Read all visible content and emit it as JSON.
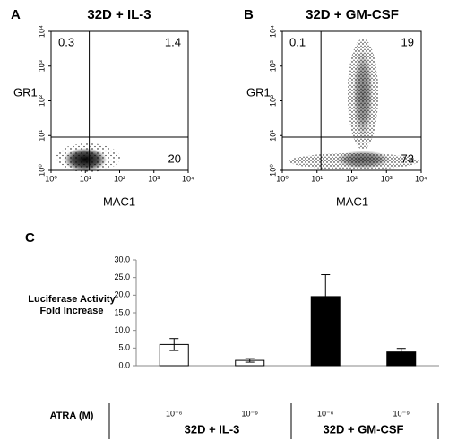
{
  "chart_data": [
    {
      "type": "scatter",
      "panel": "A",
      "title": "32D + IL-3",
      "xlabel": "MAC1",
      "ylabel": "GR1",
      "xscale": "log",
      "yscale": "log",
      "xlim": [
        1,
        10000
      ],
      "ylim": [
        1,
        10000
      ],
      "xticks": [
        {
          "value": 1,
          "label": "10⁰"
        },
        {
          "value": 10,
          "label": "10¹"
        },
        {
          "value": 100,
          "label": "10²"
        },
        {
          "value": 1000,
          "label": "10³"
        },
        {
          "value": 10000,
          "label": "10⁴"
        }
      ],
      "yticks": [
        {
          "value": 1,
          "label": "10⁰"
        },
        {
          "value": 10,
          "label": "10¹"
        },
        {
          "value": 100,
          "label": "10²"
        },
        {
          "value": 1000,
          "label": "10³"
        },
        {
          "value": 10000,
          "label": "10⁴"
        }
      ],
      "gate_x": 13,
      "gate_y": 9,
      "quadrants": {
        "upper_left": 0.3,
        "upper_right": 1.4,
        "lower_right": 20
      }
    },
    {
      "type": "scatter",
      "panel": "B",
      "title": "32D + GM-CSF",
      "xlabel": "MAC1",
      "ylabel": "GR1",
      "xscale": "log",
      "yscale": "log",
      "xlim": [
        1,
        10000
      ],
      "ylim": [
        1,
        10000
      ],
      "xticks": [
        {
          "value": 1,
          "label": "10⁰"
        },
        {
          "value": 10,
          "label": "10¹"
        },
        {
          "value": 100,
          "label": "10²"
        },
        {
          "value": 1000,
          "label": "10³"
        },
        {
          "value": 10000,
          "label": "10⁴"
        }
      ],
      "yticks": [
        {
          "value": 1,
          "label": "10⁰"
        },
        {
          "value": 10,
          "label": "10¹"
        },
        {
          "value": 100,
          "label": "10²"
        },
        {
          "value": 1000,
          "label": "10³"
        },
        {
          "value": 10000,
          "label": "10⁴"
        }
      ],
      "gate_x": 13,
      "gate_y": 9,
      "quadrants": {
        "upper_left": 0.1,
        "upper_right": 19,
        "lower_right": 73
      }
    },
    {
      "type": "bar",
      "panel": "C",
      "ylabel": [
        "Luciferase Activity",
        "Fold Increase"
      ],
      "xlabel": "ATRA (M)",
      "categories": [
        "10⁻⁶",
        "10⁻⁹",
        "10⁻⁶",
        "10⁻⁹"
      ],
      "groups": [
        "32D + IL-3",
        "32D + GM-CSF"
      ],
      "values": [
        6.0,
        1.5,
        19.6,
        3.9
      ],
      "errors": [
        1.7,
        0.5,
        6.2,
        1.0
      ],
      "colors": [
        "#ffffff",
        "#ffffff",
        "#000000",
        "#000000"
      ],
      "ylim": [
        0,
        30
      ],
      "yticks": [
        {
          "value": 0,
          "label": "0.0"
        },
        {
          "value": 5,
          "label": "5.0"
        },
        {
          "value": 10,
          "label": "10.0"
        },
        {
          "value": 15,
          "label": "15.0"
        },
        {
          "value": 20,
          "label": "20.0"
        },
        {
          "value": 25,
          "label": "25.0"
        },
        {
          "value": 30,
          "label": "30.0"
        }
      ]
    }
  ]
}
